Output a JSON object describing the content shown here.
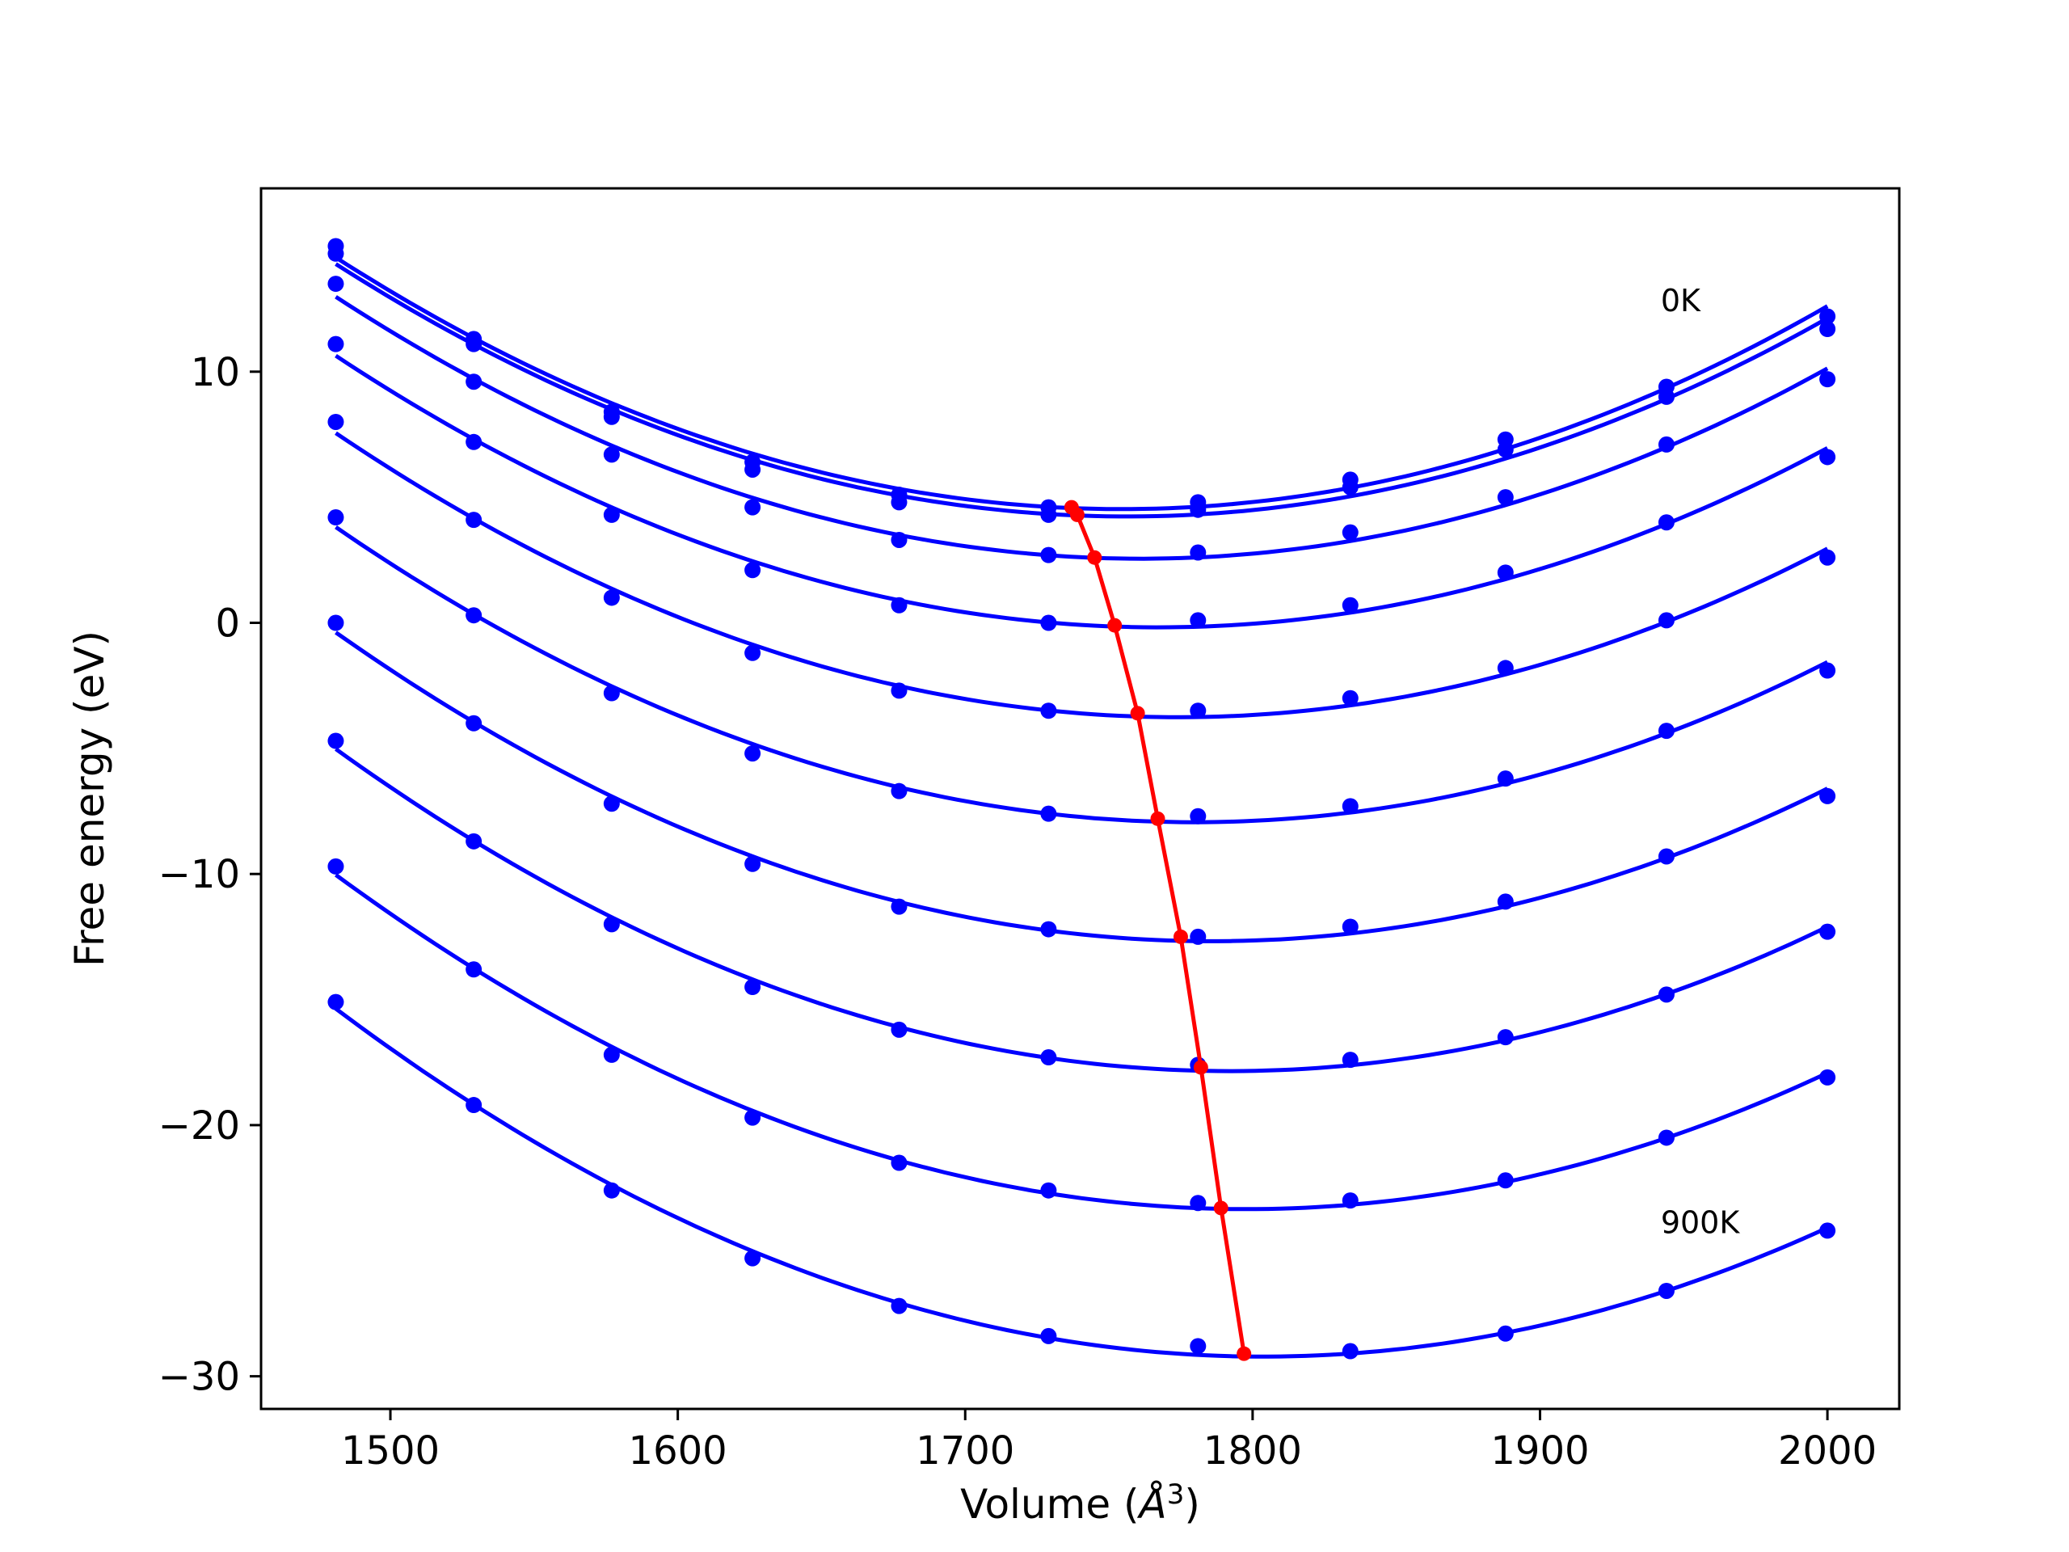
{
  "chart_data": {
    "type": "line",
    "xlabel_text": "Volume (",
    "xlabel_unit": "Å",
    "xlabel_sup": "3",
    "xlabel_close": ")",
    "ylabel": "Free energy (eV)",
    "xlim": [
      1455,
      2025
    ],
    "ylim": [
      -31.3,
      17.3
    ],
    "x_ticks": [
      1500,
      1600,
      1700,
      1800,
      1900,
      2000
    ],
    "y_ticks": [
      -30,
      -20,
      -10,
      0,
      10
    ],
    "x_tick_labels": [
      "1500",
      "1600",
      "1700",
      "1800",
      "1900",
      "2000"
    ],
    "y_tick_labels": [
      "−30",
      "−20",
      "−10",
      "0",
      "10"
    ],
    "grid": false,
    "legend": "none",
    "colors": {
      "curves": "#0000ff",
      "minima": "#ff0000"
    },
    "x": [
      1481,
      1529,
      1577,
      1626,
      1677,
      1729,
      1781,
      1834,
      1888,
      1944,
      2000
    ],
    "series": [
      {
        "values": [
          15.0,
          11.3,
          8.4,
          6.4,
          5.1,
          4.6,
          4.8,
          5.7,
          7.3,
          9.4,
          12.2
        ]
      },
      {
        "values": [
          14.7,
          11.1,
          8.2,
          6.1,
          4.8,
          4.3,
          4.5,
          5.4,
          6.9,
          9.0,
          11.7
        ]
      },
      {
        "values": [
          13.5,
          9.6,
          6.7,
          4.6,
          3.3,
          2.7,
          2.8,
          3.6,
          5.0,
          7.1,
          9.7
        ]
      },
      {
        "values": [
          11.1,
          7.2,
          4.3,
          2.1,
          0.7,
          0.0,
          0.1,
          0.7,
          2.0,
          4.0,
          6.6
        ]
      },
      {
        "values": [
          8.0,
          4.1,
          1.0,
          -1.2,
          -2.7,
          -3.5,
          -3.5,
          -3.0,
          -1.8,
          0.1,
          2.6
        ]
      },
      {
        "values": [
          4.2,
          0.3,
          -2.8,
          -5.2,
          -6.7,
          -7.6,
          -7.7,
          -7.3,
          -6.2,
          -4.3,
          -1.9
        ]
      },
      {
        "values": [
          0.0,
          -4.0,
          -7.2,
          -9.6,
          -11.3,
          -12.2,
          -12.5,
          -12.1,
          -11.1,
          -9.3,
          -6.9
        ]
      },
      {
        "values": [
          -4.7,
          -8.7,
          -12.0,
          -14.5,
          -16.2,
          -17.3,
          -17.6,
          -17.4,
          -16.5,
          -14.8,
          -12.3
        ]
      },
      {
        "values": [
          -9.7,
          -13.8,
          -17.2,
          -19.7,
          -21.5,
          -22.6,
          -23.1,
          -23.0,
          -22.2,
          -20.5,
          -18.1
        ]
      },
      {
        "values": [
          -15.1,
          -19.2,
          -22.6,
          -25.3,
          -27.2,
          -28.4,
          -28.8,
          -29.0,
          -28.3,
          -26.6,
          -24.2
        ]
      }
    ],
    "minima": [
      {
        "x": 1737,
        "y": 4.6
      },
      {
        "x": 1739,
        "y": 4.3
      },
      {
        "x": 1745,
        "y": 2.6
      },
      {
        "x": 1752,
        "y": -0.1
      },
      {
        "x": 1760,
        "y": -3.6
      },
      {
        "x": 1767,
        "y": -7.8
      },
      {
        "x": 1775,
        "y": -12.5
      },
      {
        "x": 1782,
        "y": -17.7
      },
      {
        "x": 1789,
        "y": -23.3
      },
      {
        "x": 1797,
        "y": -29.1
      }
    ],
    "annotations": [
      {
        "text": "0K",
        "x": 1942,
        "y": 12.4
      },
      {
        "text": "900K",
        "x": 1942,
        "y": -24.3
      }
    ]
  }
}
